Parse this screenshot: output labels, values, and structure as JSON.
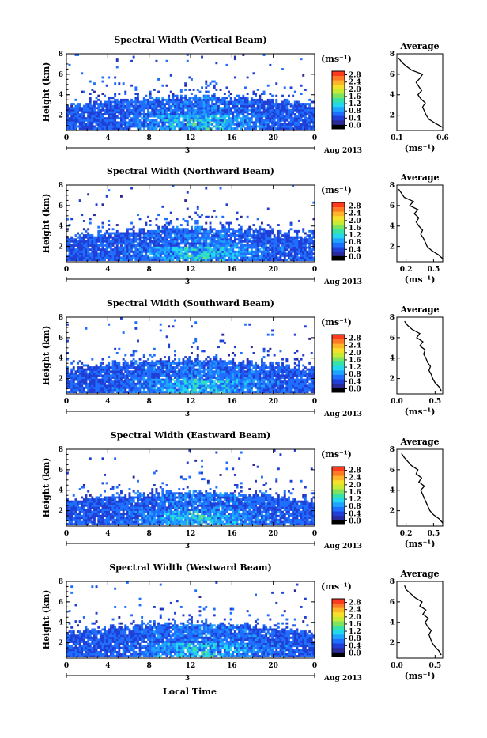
{
  "figure": {
    "xlabel": "Local Time",
    "day_label": "3",
    "month_label": "Aug 2013",
    "ylabel": "Height (km)",
    "avg_title": "Average",
    "avg_xlabel": "(ms⁻¹)",
    "colorbar_unit": "(ms⁻¹)",
    "x_ticks": [
      "0",
      "4",
      "8",
      "12",
      "16",
      "20",
      "0"
    ],
    "y_ticks": [
      "2",
      "4",
      "6",
      "8"
    ],
    "colorbar_ticks": [
      "0.0",
      "0.4",
      "0.8",
      "1.2",
      "1.6",
      "2.0",
      "2.4",
      "2.8"
    ],
    "colorbar_colors": [
      "#000000",
      "#2a2a9a",
      "#1f3fd6",
      "#1f6fff",
      "#1fa3ff",
      "#22d7ee",
      "#37e2a9",
      "#7ee35f",
      "#c7ea35",
      "#f5e12a",
      "#ffb52a",
      "#ff7a26",
      "#ff3a1f"
    ]
  },
  "chart_data": [
    {
      "type": "heatmap",
      "title": "Spectral Width (Vertical Beam)",
      "xlabel": "Local Time",
      "ylabel": "Height (km)",
      "xlim": [
        0,
        24
      ],
      "ylim": [
        0.5,
        8
      ],
      "colorbar_range": [
        0.0,
        2.8
      ],
      "avg_xlim": [
        0.1,
        0.6
      ],
      "avg_xticks": [
        "0.1",
        "0.6"
      ],
      "avg_profile": {
        "height": [
          0.8,
          1.2,
          1.6,
          2.0,
          2.4,
          2.8,
          3.2,
          3.6,
          4.0,
          4.4,
          4.8,
          5.2,
          5.6,
          6.0,
          6.4,
          6.8,
          7.2,
          7.6
        ],
        "width": [
          0.6,
          0.52,
          0.45,
          0.42,
          0.4,
          0.38,
          0.41,
          0.36,
          0.33,
          0.37,
          0.34,
          0.31,
          0.35,
          0.38,
          0.26,
          0.2,
          0.15,
          0.12
        ]
      }
    },
    {
      "type": "heatmap",
      "title": "Spectral Width (Northward Beam)",
      "xlabel": "Local Time",
      "ylabel": "Height (km)",
      "xlim": [
        0,
        24
      ],
      "ylim": [
        0.5,
        8
      ],
      "colorbar_range": [
        0.0,
        2.8
      ],
      "avg_xlim": [
        0.1,
        0.6
      ],
      "avg_xticks": [
        "0.2",
        "0.5"
      ],
      "avg_profile": {
        "height": [
          0.8,
          1.2,
          1.6,
          2.0,
          2.4,
          2.8,
          3.2,
          3.6,
          4.0,
          4.4,
          4.8,
          5.2,
          5.6,
          6.0,
          6.4,
          6.8,
          7.2,
          7.6
        ],
        "width": [
          0.6,
          0.55,
          0.48,
          0.43,
          0.41,
          0.39,
          0.36,
          0.38,
          0.34,
          0.31,
          0.34,
          0.29,
          0.33,
          0.24,
          0.28,
          0.18,
          0.15,
          0.12
        ]
      }
    },
    {
      "type": "heatmap",
      "title": "Spectral Width (Southward Beam)",
      "xlabel": "Local Time",
      "ylabel": "Height (km)",
      "xlim": [
        0,
        24
      ],
      "ylim": [
        0.5,
        8
      ],
      "colorbar_range": [
        0.0,
        2.8
      ],
      "avg_xlim": [
        0.0,
        0.6
      ],
      "avg_xticks": [
        "0.0",
        "0.5"
      ],
      "avg_profile": {
        "height": [
          0.8,
          1.2,
          1.6,
          2.0,
          2.4,
          2.8,
          3.2,
          3.6,
          4.0,
          4.4,
          4.8,
          5.2,
          5.6,
          6.0,
          6.4,
          6.8,
          7.2,
          7.6
        ],
        "width": [
          0.58,
          0.55,
          0.5,
          0.47,
          0.45,
          0.42,
          0.44,
          0.4,
          0.38,
          0.35,
          0.37,
          0.3,
          0.34,
          0.26,
          0.3,
          0.2,
          0.14,
          0.1
        ]
      }
    },
    {
      "type": "heatmap",
      "title": "Spectral Width (Eastward Beam)",
      "xlabel": "Local Time",
      "ylabel": "Height (km)",
      "xlim": [
        0,
        24
      ],
      "ylim": [
        0.5,
        8
      ],
      "colorbar_range": [
        0.0,
        2.8
      ],
      "avg_xlim": [
        0.1,
        0.6
      ],
      "avg_xticks": [
        "0.2",
        "0.5"
      ],
      "avg_profile": {
        "height": [
          0.8,
          1.2,
          1.6,
          2.0,
          2.4,
          2.8,
          3.2,
          3.6,
          4.0,
          4.4,
          4.8,
          5.2,
          5.6,
          6.0,
          6.4,
          6.8,
          7.2,
          7.6
        ],
        "width": [
          0.6,
          0.56,
          0.5,
          0.46,
          0.44,
          0.42,
          0.4,
          0.38,
          0.36,
          0.4,
          0.34,
          0.37,
          0.31,
          0.33,
          0.26,
          0.22,
          0.18,
          0.15
        ]
      }
    },
    {
      "type": "heatmap",
      "title": "Spectral Width (Westward Beam)",
      "xlabel": "Local Time",
      "ylabel": "Height (km)",
      "xlim": [
        0,
        24
      ],
      "ylim": [
        0.5,
        8
      ],
      "colorbar_range": [
        0.0,
        2.8
      ],
      "avg_xlim": [
        0.0,
        0.6
      ],
      "avg_xticks": [
        "0.0",
        "0.5"
      ],
      "avg_profile": {
        "height": [
          0.8,
          1.2,
          1.6,
          2.0,
          2.4,
          2.8,
          3.2,
          3.6,
          4.0,
          4.4,
          4.8,
          5.2,
          5.6,
          6.0,
          6.4,
          6.8,
          7.2,
          7.6
        ],
        "width": [
          0.58,
          0.55,
          0.5,
          0.46,
          0.44,
          0.42,
          0.45,
          0.4,
          0.37,
          0.41,
          0.34,
          0.38,
          0.3,
          0.33,
          0.24,
          0.18,
          0.12,
          0.1
        ]
      }
    }
  ]
}
